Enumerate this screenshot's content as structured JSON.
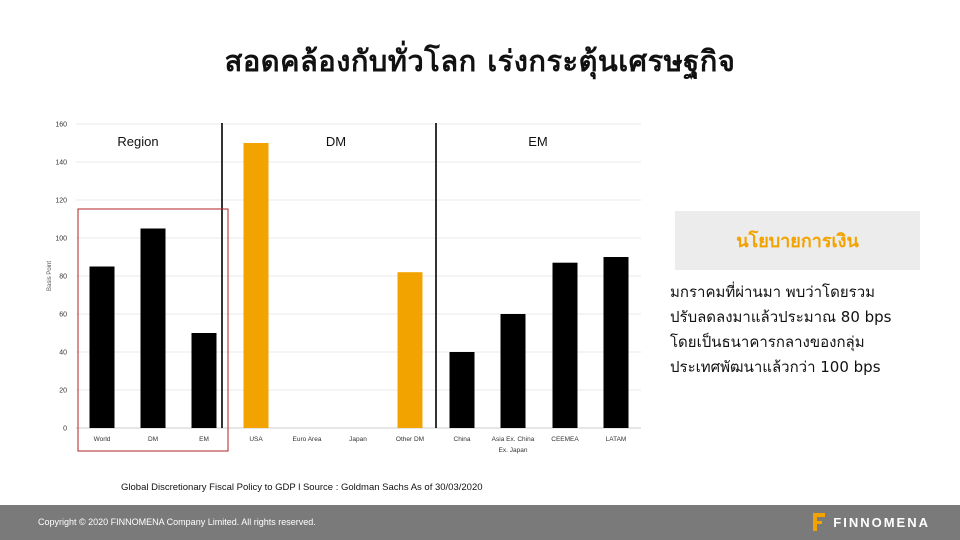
{
  "slide": {
    "title": "สอดคล้องกับทั่วโลก เร่งกระตุ้นเศรษฐกิจ",
    "caption": "Global Discretionary Fiscal Policy to GDP l Source : Goldman Sachs As of 30/03/2020",
    "policy_heading": "นโยบายการเงิน",
    "policy_lines": [
      "มกราคมที่ผ่านมา      พบว่าโดยรวม",
      "ปรับลดลงมาแล้วประมาณ 80 bps",
      "โดยเป็นธนาคารกลางของกลุ่ม",
      "ประเทศพัฒนาแล้วกว่า 100 bps"
    ],
    "copyright": "Copyright © 2020 FINNOMENA Company Limited. All rights reserved.",
    "brand": "FINNOMENA"
  },
  "colors": {
    "black_bar": "#000000",
    "orange_bar": "#f3a300",
    "highlight_box": "#b22222",
    "footer": "#7a7a7a"
  },
  "chart_data": {
    "type": "bar",
    "ylabel": "Basis Point",
    "ylim": [
      0,
      160
    ],
    "yticks": [
      0,
      20,
      40,
      60,
      80,
      100,
      120,
      140,
      160
    ],
    "grid": true,
    "sections": [
      "Region",
      "DM",
      "EM"
    ],
    "categories": [
      "World",
      "DM",
      "EM",
      "USA",
      "Euro Area",
      "Japan",
      "Other DM",
      "China",
      "Asia Ex. China",
      "CEEMEA",
      "LATAM"
    ],
    "category_labels": [
      [
        "World"
      ],
      [
        "DM"
      ],
      [
        "EM"
      ],
      [
        "USA"
      ],
      [
        "Euro Area"
      ],
      [
        "Japan"
      ],
      [
        "Other DM"
      ],
      [
        "China"
      ],
      [
        "Asia Ex. China",
        "Ex. Japan"
      ],
      [
        "CEEMEA"
      ],
      [
        "LATAM"
      ]
    ],
    "values": [
      85,
      105,
      50,
      150,
      0,
      0,
      82,
      40,
      60,
      87,
      90
    ],
    "bar_colors": [
      "black",
      "black",
      "black",
      "orange",
      "orange",
      "orange",
      "orange",
      "black",
      "black",
      "black",
      "black"
    ]
  }
}
